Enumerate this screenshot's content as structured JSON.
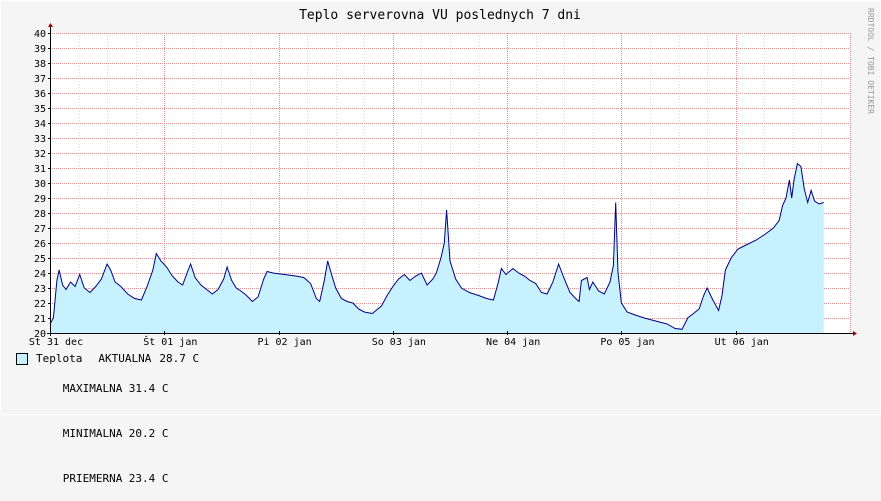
{
  "chart_data": {
    "type": "area",
    "title": "Teplo serverovna VU poslednych 7 dni",
    "watermark": "RRDTOOL / TOBI OETIKER",
    "ylim": [
      20,
      40
    ],
    "y_ticks": [
      20,
      21,
      22,
      23,
      24,
      25,
      26,
      27,
      28,
      29,
      30,
      31,
      32,
      33,
      34,
      35,
      36,
      37,
      38,
      39,
      40
    ],
    "x_ticks": [
      "St 31 dec",
      "Št 01 jan",
      "Pi 02 jan",
      "So 03 jan",
      "Ne 04 jan",
      "Po 05 jan",
      "Ut 06 jan"
    ],
    "x_range_days": [
      0,
      7
    ],
    "series": [
      {
        "name": "Teplota",
        "color_fill": "#c8f1ff",
        "color_line": "#000080",
        "points": [
          [
            0.0,
            20.6
          ],
          [
            0.03,
            21.0
          ],
          [
            0.06,
            23.5
          ],
          [
            0.08,
            24.2
          ],
          [
            0.11,
            23.2
          ],
          [
            0.14,
            22.9
          ],
          [
            0.18,
            23.4
          ],
          [
            0.22,
            23.1
          ],
          [
            0.26,
            23.9
          ],
          [
            0.3,
            23.0
          ],
          [
            0.35,
            22.7
          ],
          [
            0.4,
            23.1
          ],
          [
            0.45,
            23.6
          ],
          [
            0.5,
            24.6
          ],
          [
            0.53,
            24.2
          ],
          [
            0.57,
            23.4
          ],
          [
            0.62,
            23.1
          ],
          [
            0.68,
            22.6
          ],
          [
            0.74,
            22.3
          ],
          [
            0.8,
            22.2
          ],
          [
            0.85,
            23.1
          ],
          [
            0.9,
            24.2
          ],
          [
            0.93,
            25.3
          ],
          [
            0.97,
            24.8
          ],
          [
            1.02,
            24.4
          ],
          [
            1.07,
            23.8
          ],
          [
            1.12,
            23.4
          ],
          [
            1.16,
            23.2
          ],
          [
            1.2,
            24.0
          ],
          [
            1.23,
            24.6
          ],
          [
            1.27,
            23.7
          ],
          [
            1.32,
            23.2
          ],
          [
            1.37,
            22.9
          ],
          [
            1.42,
            22.6
          ],
          [
            1.47,
            22.9
          ],
          [
            1.52,
            23.6
          ],
          [
            1.55,
            24.4
          ],
          [
            1.59,
            23.5
          ],
          [
            1.63,
            23.0
          ],
          [
            1.67,
            22.8
          ],
          [
            1.72,
            22.5
          ],
          [
            1.77,
            22.1
          ],
          [
            1.82,
            22.4
          ],
          [
            1.87,
            23.6
          ],
          [
            1.9,
            24.1
          ],
          [
            1.95,
            24.0
          ],
          [
            2.05,
            23.9
          ],
          [
            2.15,
            23.8
          ],
          [
            2.22,
            23.7
          ],
          [
            2.28,
            23.3
          ],
          [
            2.33,
            22.3
          ],
          [
            2.36,
            22.1
          ],
          [
            2.4,
            23.5
          ],
          [
            2.43,
            24.8
          ],
          [
            2.46,
            24.0
          ],
          [
            2.5,
            23.0
          ],
          [
            2.55,
            22.3
          ],
          [
            2.6,
            22.1
          ],
          [
            2.65,
            22.0
          ],
          [
            2.7,
            21.6
          ],
          [
            2.75,
            21.4
          ],
          [
            2.82,
            21.3
          ],
          [
            2.9,
            21.8
          ],
          [
            2.95,
            22.5
          ],
          [
            3.0,
            23.1
          ],
          [
            3.05,
            23.6
          ],
          [
            3.1,
            23.9
          ],
          [
            3.15,
            23.5
          ],
          [
            3.2,
            23.8
          ],
          [
            3.25,
            24.0
          ],
          [
            3.3,
            23.2
          ],
          [
            3.35,
            23.6
          ],
          [
            3.38,
            24.0
          ],
          [
            3.42,
            25.0
          ],
          [
            3.45,
            26.0
          ],
          [
            3.47,
            28.2
          ],
          [
            3.5,
            24.8
          ],
          [
            3.55,
            23.6
          ],
          [
            3.6,
            23.0
          ],
          [
            3.67,
            22.7
          ],
          [
            3.75,
            22.5
          ],
          [
            3.82,
            22.3
          ],
          [
            3.88,
            22.2
          ],
          [
            3.92,
            23.3
          ],
          [
            3.95,
            24.3
          ],
          [
            3.99,
            23.9
          ],
          [
            4.05,
            24.3
          ],
          [
            4.1,
            24.0
          ],
          [
            4.15,
            23.8
          ],
          [
            4.2,
            23.5
          ],
          [
            4.25,
            23.3
          ],
          [
            4.3,
            22.7
          ],
          [
            4.35,
            22.6
          ],
          [
            4.4,
            23.4
          ],
          [
            4.45,
            24.6
          ],
          [
            4.5,
            23.6
          ],
          [
            4.55,
            22.7
          ],
          [
            4.6,
            22.3
          ],
          [
            4.63,
            22.1
          ],
          [
            4.65,
            23.5
          ],
          [
            4.7,
            23.7
          ],
          [
            4.72,
            22.9
          ],
          [
            4.75,
            23.4
          ],
          [
            4.8,
            22.8
          ],
          [
            4.85,
            22.6
          ],
          [
            4.9,
            23.4
          ],
          [
            4.93,
            24.5
          ],
          [
            4.95,
            28.7
          ],
          [
            4.97,
            24.0
          ],
          [
            5.0,
            22.0
          ],
          [
            5.05,
            21.4
          ],
          [
            5.12,
            21.2
          ],
          [
            5.2,
            21.0
          ],
          [
            5.3,
            20.8
          ],
          [
            5.4,
            20.6
          ],
          [
            5.47,
            20.3
          ],
          [
            5.53,
            20.25
          ],
          [
            5.58,
            21.0
          ],
          [
            5.63,
            21.3
          ],
          [
            5.68,
            21.6
          ],
          [
            5.72,
            22.5
          ],
          [
            5.75,
            23.0
          ],
          [
            5.8,
            22.2
          ],
          [
            5.85,
            21.5
          ],
          [
            5.88,
            22.5
          ],
          [
            5.91,
            24.2
          ],
          [
            5.96,
            25.0
          ],
          [
            6.02,
            25.6
          ],
          [
            6.1,
            25.9
          ],
          [
            6.18,
            26.2
          ],
          [
            6.26,
            26.6
          ],
          [
            6.33,
            27.0
          ],
          [
            6.38,
            27.5
          ],
          [
            6.41,
            28.5
          ],
          [
            6.44,
            29.0
          ],
          [
            6.47,
            30.2
          ],
          [
            6.49,
            29.0
          ],
          [
            6.51,
            30.2
          ],
          [
            6.54,
            31.3
          ],
          [
            6.57,
            31.1
          ],
          [
            6.6,
            29.6
          ],
          [
            6.63,
            28.7
          ],
          [
            6.66,
            29.5
          ],
          [
            6.69,
            28.8
          ],
          [
            6.73,
            28.6
          ],
          [
            6.77,
            28.7
          ]
        ]
      }
    ],
    "legend": {
      "series_name": "Teplota",
      "current_label": "AKTUALNA",
      "current_value": "28.7 C"
    },
    "stats": [
      {
        "label": "MAXIMALNA",
        "value": "31.4 C"
      },
      {
        "label": "MINIMALNA",
        "value": "20.2 C"
      },
      {
        "label": "PRIEMERNA",
        "value": "23.4 C"
      }
    ]
  }
}
